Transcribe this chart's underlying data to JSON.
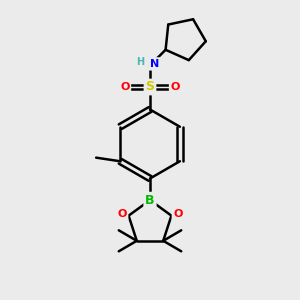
{
  "background_color": "#ebebeb",
  "atom_colors": {
    "C": "#000000",
    "H": "#4ab5b5",
    "N": "#0000ff",
    "O": "#ff0000",
    "S": "#cccc00",
    "B": "#00bb00"
  },
  "bond_color": "#000000",
  "bond_width": 1.8,
  "figsize": [
    3.0,
    3.0
  ],
  "dpi": 100
}
